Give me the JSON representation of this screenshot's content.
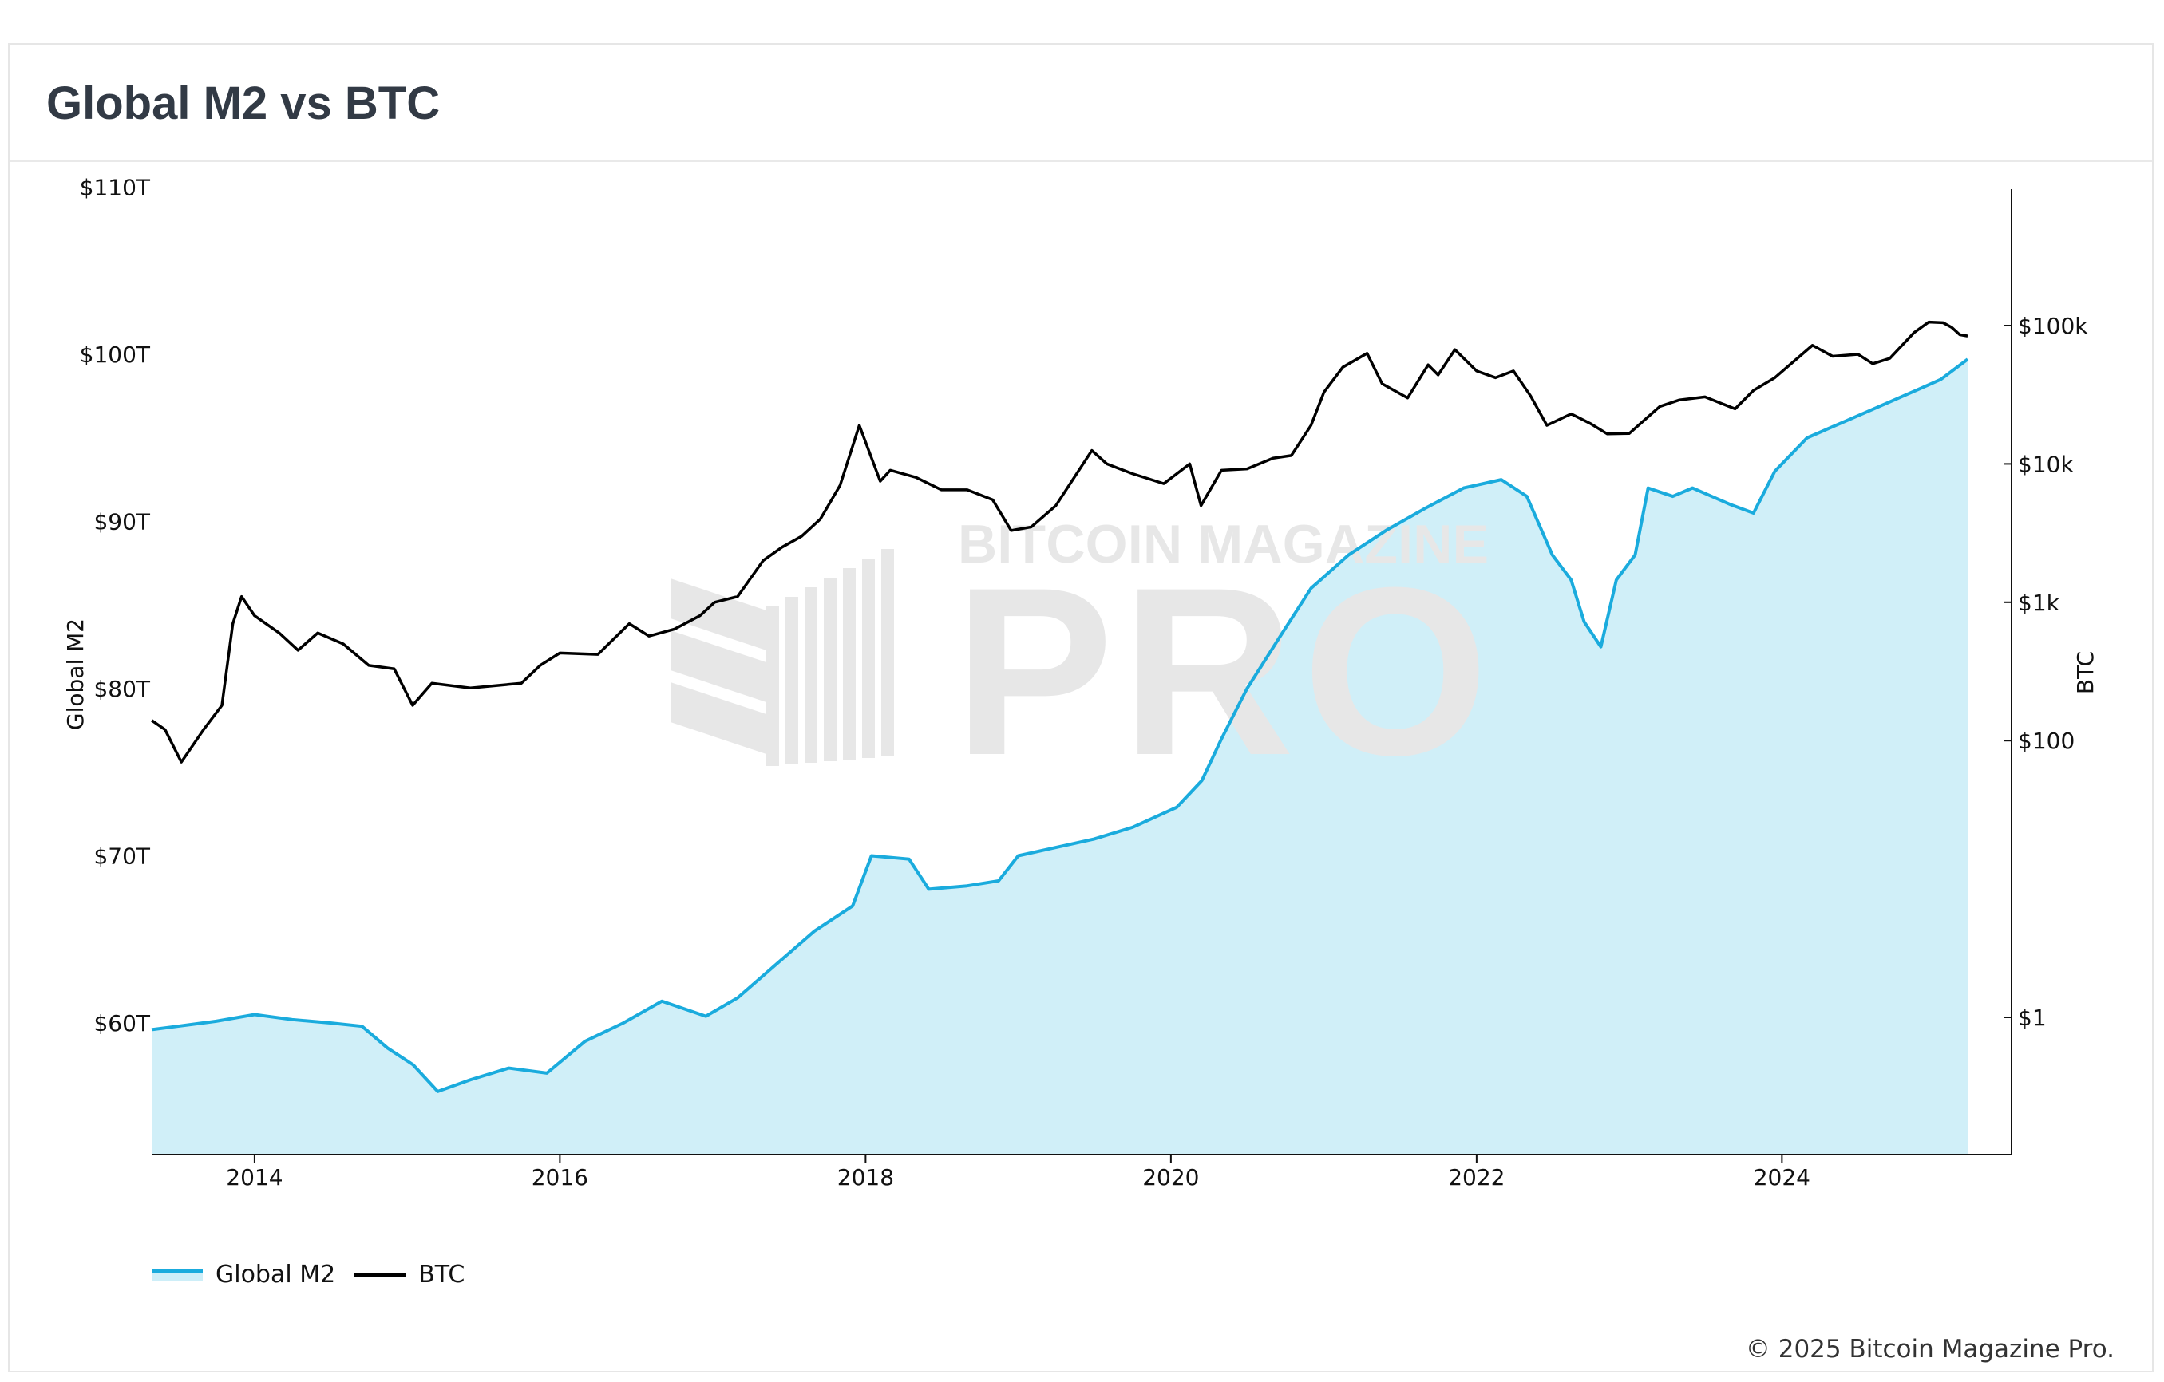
{
  "chart_data": {
    "type": "line",
    "title": "Global M2 vs BTC",
    "watermark": "BITCOIN MAGAZINE PRO",
    "x_ticks": [
      "2014",
      "2016",
      "2018",
      "2020",
      "2022",
      "2024"
    ],
    "y_left": {
      "label": "Global M2",
      "ticks": [
        "$110T",
        "$100T",
        "$90T",
        "$80T",
        "$70T",
        "$60T"
      ],
      "tick_values": [
        110,
        100,
        90,
        80,
        70,
        60
      ],
      "range": [
        52,
        110
      ]
    },
    "y_right": {
      "label": "BTC",
      "scale": "log",
      "ticks": [
        "$100k",
        "$10k",
        "$1k",
        "$100",
        "$1"
      ],
      "tick_values": [
        100000,
        10000,
        1000,
        100,
        1
      ],
      "range": [
        0.1,
        1000000
      ]
    },
    "x_range": [
      "2013-04-30",
      "2025-03-20"
    ],
    "series": [
      {
        "name": "Global M2",
        "axis": "left",
        "color": "#1aabdd",
        "fill": "#cdeef8",
        "x": [
          "2013-04-30",
          "2013-07-01",
          "2013-10-01",
          "2014-01-01",
          "2014-04-01",
          "2014-07-01",
          "2014-09-15",
          "2014-11-15",
          "2015-01-15",
          "2015-03-15",
          "2015-06-01",
          "2015-09-01",
          "2015-12-01",
          "2016-03-01",
          "2016-06-01",
          "2016-09-01",
          "2016-12-15",
          "2017-03-01",
          "2017-06-01",
          "2017-09-01",
          "2017-12-01",
          "2018-01-15",
          "2018-04-15",
          "2018-06-01",
          "2018-09-01",
          "2018-11-15",
          "2019-01-01",
          "2019-04-01",
          "2019-07-01",
          "2019-10-01",
          "2020-01-15",
          "2020-03-15",
          "2020-05-01",
          "2020-07-01",
          "2020-09-15",
          "2020-12-01",
          "2021-03-01",
          "2021-06-01",
          "2021-09-01",
          "2021-12-01",
          "2022-03-01",
          "2022-05-01",
          "2022-07-01",
          "2022-08-15",
          "2022-09-15",
          "2022-10-25",
          "2022-12-01",
          "2023-01-15",
          "2023-02-15",
          "2023-04-15",
          "2023-06-01",
          "2023-09-01",
          "2023-10-25",
          "2023-12-15",
          "2024-03-01",
          "2024-06-01",
          "2024-09-01",
          "2024-12-01",
          "2025-01-15",
          "2025-03-20"
        ],
        "values": [
          59.6,
          59.8,
          60.1,
          60.5,
          60.2,
          60.0,
          59.8,
          58.5,
          57.5,
          55.9,
          56.6,
          57.3,
          57.0,
          58.9,
          60.0,
          61.3,
          60.4,
          61.5,
          63.5,
          65.5,
          67.0,
          70.0,
          69.8,
          68.0,
          68.2,
          68.5,
          70.0,
          70.5,
          71.0,
          71.7,
          72.9,
          74.5,
          77.0,
          80.0,
          83.0,
          86.0,
          88.0,
          89.5,
          90.8,
          92.0,
          92.5,
          91.5,
          88.0,
          86.5,
          84.0,
          82.5,
          86.5,
          88.0,
          92.0,
          91.5,
          92.0,
          91.0,
          90.5,
          93.0,
          95.0,
          96.0,
          97.0,
          98.0,
          98.5,
          99.7
        ]
      },
      {
        "name": "BTC",
        "axis": "right",
        "color": "#000000",
        "x": [
          "2013-04-30",
          "2013-06-01",
          "2013-07-10",
          "2013-09-01",
          "2013-10-15",
          "2013-11-10",
          "2013-12-01",
          "2014-01-01",
          "2014-03-01",
          "2014-04-15",
          "2014-06-01",
          "2014-08-01",
          "2014-10-01",
          "2014-12-01",
          "2015-01-14",
          "2015-03-01",
          "2015-06-01",
          "2015-08-01",
          "2015-10-01",
          "2015-11-15",
          "2016-01-01",
          "2016-04-01",
          "2016-06-15",
          "2016-08-01",
          "2016-10-01",
          "2016-12-01",
          "2017-01-05",
          "2017-03-01",
          "2017-05-01",
          "2017-06-15",
          "2017-08-01",
          "2017-09-15",
          "2017-11-01",
          "2017-12-17",
          "2018-02-05",
          "2018-03-01",
          "2018-05-01",
          "2018-07-01",
          "2018-09-01",
          "2018-11-01",
          "2018-12-15",
          "2019-02-01",
          "2019-04-01",
          "2019-06-26",
          "2019-08-01",
          "2019-10-01",
          "2019-12-15",
          "2020-02-15",
          "2020-03-13",
          "2020-05-01",
          "2020-07-01",
          "2020-09-01",
          "2020-10-15",
          "2020-12-01",
          "2021-01-01",
          "2021-02-15",
          "2021-04-14",
          "2021-05-20",
          "2021-07-20",
          "2021-09-07",
          "2021-10-01",
          "2021-11-10",
          "2022-01-01",
          "2022-02-15",
          "2022-03-30",
          "2022-05-10",
          "2022-06-18",
          "2022-08-15",
          "2022-10-01",
          "2022-11-09",
          "2023-01-01",
          "2023-03-15",
          "2023-05-01",
          "2023-07-01",
          "2023-09-11",
          "2023-10-25",
          "2023-12-15",
          "2024-03-14",
          "2024-05-01",
          "2024-07-01",
          "2024-08-05",
          "2024-09-15",
          "2024-11-12",
          "2024-12-17",
          "2025-01-20",
          "2025-02-10",
          "2025-03-01",
          "2025-03-20"
        ],
        "values": [
          140,
          120,
          70,
          120,
          180,
          700,
          1100,
          800,
          600,
          450,
          600,
          500,
          350,
          330,
          180,
          260,
          240,
          250,
          260,
          350,
          430,
          420,
          700,
          570,
          640,
          800,
          1000,
          1100,
          2000,
          2500,
          3000,
          4000,
          7000,
          19000,
          7500,
          9000,
          8000,
          6500,
          6500,
          5500,
          3300,
          3500,
          5000,
          12500,
          10000,
          8500,
          7200,
          10000,
          5000,
          9000,
          9200,
          11000,
          11500,
          19000,
          33000,
          50000,
          63000,
          38000,
          30000,
          52000,
          44000,
          67000,
          47000,
          42000,
          47000,
          31000,
          19000,
          23000,
          19500,
          16500,
          16600,
          26000,
          29000,
          30500,
          25000,
          34000,
          42000,
          72000,
          60000,
          62000,
          53000,
          58000,
          89000,
          106000,
          105000,
          97000,
          86000,
          84000
        ]
      }
    ]
  },
  "legend": {
    "items": [
      {
        "label": "Global M2"
      },
      {
        "label": "BTC"
      }
    ]
  },
  "footer": {
    "copyright": "© 2025 Bitcoin Magazine Pro."
  },
  "colors": {
    "m2_line": "#1aabdd",
    "m2_fill": "#cdeef8",
    "btc_line": "#000000",
    "watermark": "#e7e7e7",
    "watermark_on_fill": "#b8dbe4"
  }
}
